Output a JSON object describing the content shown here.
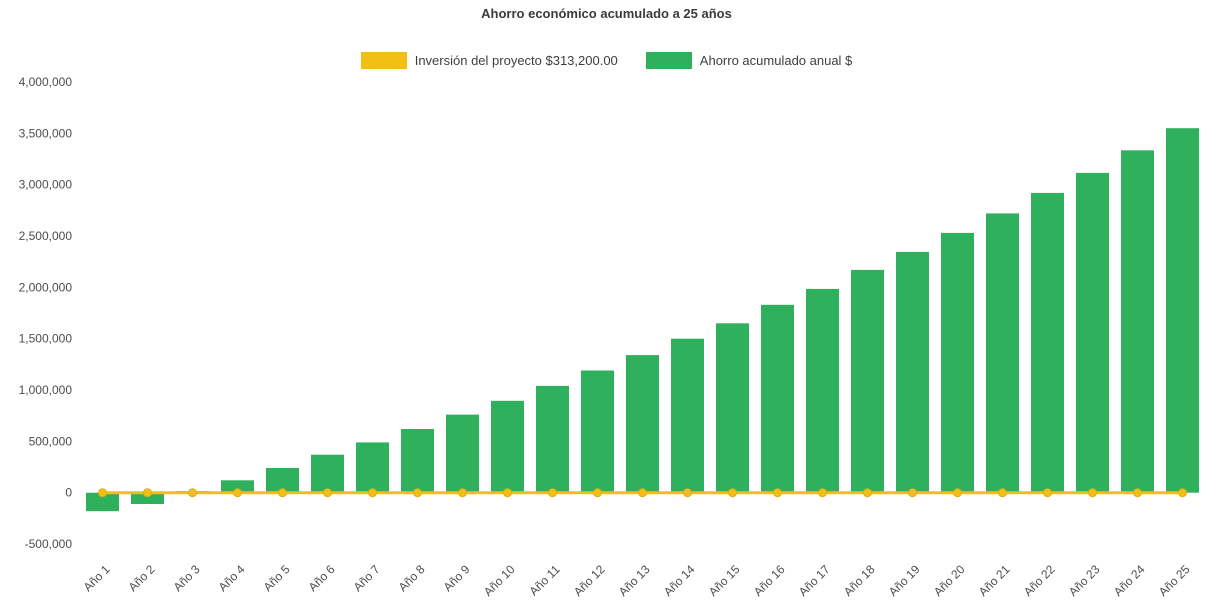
{
  "title": "Ahorro económico acumulado a 25 años",
  "legend": [
    {
      "label": "Inversión del proyecto $313,200.00",
      "color": "#F2C014"
    },
    {
      "label": "Ahorro acumulado anual $",
      "color": "#2EB05C"
    }
  ],
  "chart_data": {
    "type": "bar",
    "title": "Ahorro económico acumulado a 25 años",
    "categories": [
      "Año 1",
      "Año 2",
      "Año 3",
      "Año 4",
      "Año 5",
      "Año 6",
      "Año 7",
      "Año 8",
      "Año 9",
      "Año 10",
      "Año 11",
      "Año 12",
      "Año 13",
      "Año 14",
      "Año 15",
      "Año 16",
      "Año 17",
      "Año 18",
      "Año 19",
      "Año 20",
      "Año 21",
      "Año 22",
      "Año 23",
      "Año 24",
      "Año 25"
    ],
    "series": [
      {
        "name": "Ahorro acumulado anual $",
        "type": "bar",
        "color": "#2EB05C",
        "values": [
          -180000,
          -110000,
          15000,
          120000,
          240000,
          370000,
          490000,
          620000,
          760000,
          895000,
          1040000,
          1190000,
          1340000,
          1500000,
          1650000,
          1830000,
          1985000,
          2170000,
          2345000,
          2530000,
          2720000,
          2920000,
          3115000,
          3335000,
          3550000
        ]
      },
      {
        "name": "Inversión del proyecto $313,200.00",
        "type": "line",
        "color": "#F2C014",
        "marker_stroke": "#DFAE10",
        "stated_value_label": "$313,200.00",
        "values": [
          0,
          0,
          0,
          0,
          0,
          0,
          0,
          0,
          0,
          0,
          0,
          0,
          0,
          0,
          0,
          0,
          0,
          0,
          0,
          0,
          0,
          0,
          0,
          0,
          0
        ]
      }
    ],
    "y_ticks": [
      -500000,
      0,
      500000,
      1000000,
      1500000,
      2000000,
      2500000,
      3000000,
      3500000,
      4000000
    ],
    "y_tick_labels": [
      "-500,000",
      "0",
      "500,000",
      "1,000,000",
      "1,500,000",
      "2,000,000",
      "2,500,000",
      "3,000,000",
      "3,500,000",
      "4,000,000"
    ],
    "ylim": [
      -500000,
      4000000
    ],
    "grid": false,
    "legend_position": "top",
    "x_label_rotation": -45
  }
}
